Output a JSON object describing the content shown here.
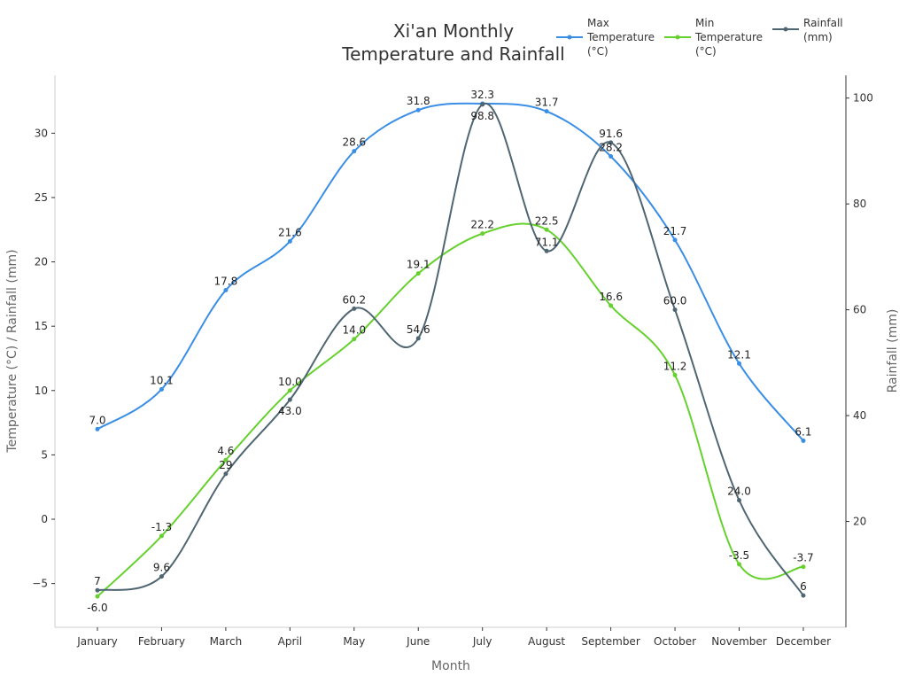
{
  "chart_data": {
    "type": "line",
    "title": [
      "Xi'an Monthly",
      "Temperature and Rainfall"
    ],
    "xlabel": "Month",
    "ylabel": "Temperature (°C) / Rainfall (mm)",
    "ylabel_right": "Rainfall (mm)",
    "categories": [
      "January",
      "February",
      "March",
      "April",
      "May",
      "June",
      "July",
      "August",
      "September",
      "October",
      "November",
      "December"
    ],
    "ylim": [
      -8.4,
      34.5
    ],
    "ylim_right": [
      0,
      104.3
    ],
    "yticks": [
      -5,
      0,
      5,
      10,
      15,
      20,
      25,
      30
    ],
    "yticks_right": [
      20,
      40,
      60,
      80,
      100
    ],
    "grid": false,
    "legend_position": "top-right",
    "series": [
      {
        "name": "Max Temperature (°C)",
        "axis": "left",
        "color": "#3a8ee6",
        "values": [
          7.0,
          10.1,
          17.8,
          21.6,
          28.6,
          31.8,
          32.3,
          31.7,
          28.2,
          21.7,
          12.1,
          6.1
        ],
        "labels": [
          "7.0",
          "10.1",
          "17.8",
          "21.6",
          "28.6",
          "31.8",
          "32.3",
          "31.7",
          "28.2",
          "21.7",
          "12.1",
          "6.1"
        ]
      },
      {
        "name": "Min Temperature (°C)",
        "axis": "left",
        "color": "#66d12e",
        "values": [
          -6.0,
          -1.3,
          4.6,
          10.0,
          14.0,
          19.1,
          22.2,
          22.5,
          16.6,
          11.2,
          -3.5,
          -3.7
        ],
        "labels": [
          "-6.0",
          "-1.3",
          "4.6",
          "10.0",
          "14.0",
          "19.1",
          "22.2",
          "22.5",
          "16.6",
          "11.2",
          "-3.5",
          "-3.7"
        ]
      },
      {
        "name": "Rainfall (mm)",
        "axis": "right",
        "color": "#4f6672",
        "values": [
          7,
          9.6,
          29,
          43.0,
          60.2,
          54.6,
          98.8,
          71.1,
          91.6,
          60.0,
          24.0,
          6
        ],
        "labels": [
          "7",
          "9.6",
          "29",
          "43.0",
          "60.2",
          "54.6",
          "98.8",
          "71.1",
          "91.6",
          "60.0",
          "24.0",
          "6"
        ]
      }
    ],
    "legend": [
      [
        "Max",
        "Temperature",
        "(°C)"
      ],
      [
        "Min",
        "Temperature",
        "(°C)"
      ],
      [
        "Rainfall",
        "(mm)"
      ]
    ]
  }
}
